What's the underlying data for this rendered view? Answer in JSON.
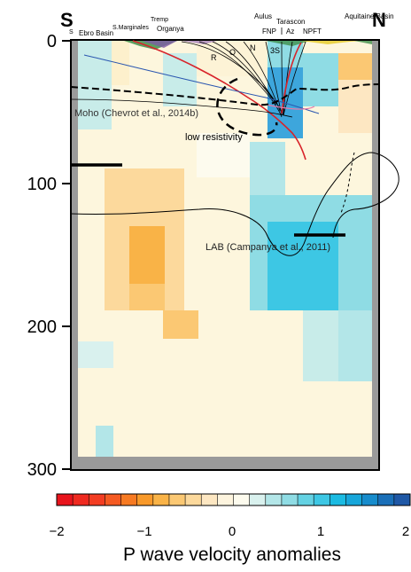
{
  "orientation": {
    "left": "S",
    "right": "N"
  },
  "depth_ticks": [
    "0",
    "100",
    "200",
    "300"
  ],
  "colorbar": {
    "ticks": [
      "−2",
      "−1",
      "0",
      "1",
      "2"
    ],
    "title": "P wave velocity anomalies",
    "colors": [
      "#e8141c",
      "#ef2a20",
      "#f33d22",
      "#f55a22",
      "#f77a22",
      "#f8992a",
      "#f9b347",
      "#fbc873",
      "#fcd99c",
      "#fde7c2",
      "#fdf4de",
      "#fdfbee",
      "#d9f1ee",
      "#b3e6e8",
      "#8fdce4",
      "#64d2e3",
      "#3dc7e4",
      "#1bbbe2",
      "#17a6da",
      "#178ccc",
      "#1a6fb8",
      "#1f58a6"
    ]
  },
  "top_labels": {
    "s": "S",
    "ebro": "Ebro Basin",
    "smarginales": "S.Marginales",
    "tremp": "Tremp",
    "organya": "Organya",
    "aulus": "Aulus",
    "tarascon": "Tarascon",
    "fnp": "FNP",
    "az": "Az",
    "npft": "NPFT",
    "aquitaine": "Aquitaine Basin"
  },
  "structure_labels": {
    "r": "R",
    "o": "O",
    "n": "N",
    "three_s": "3S"
  },
  "annotations": {
    "moho": "Moho (Chevrot et al., 2014b)",
    "low_resistivity": "low resistivity",
    "lab": "LAB (Campanya et al., 2011)"
  }
}
